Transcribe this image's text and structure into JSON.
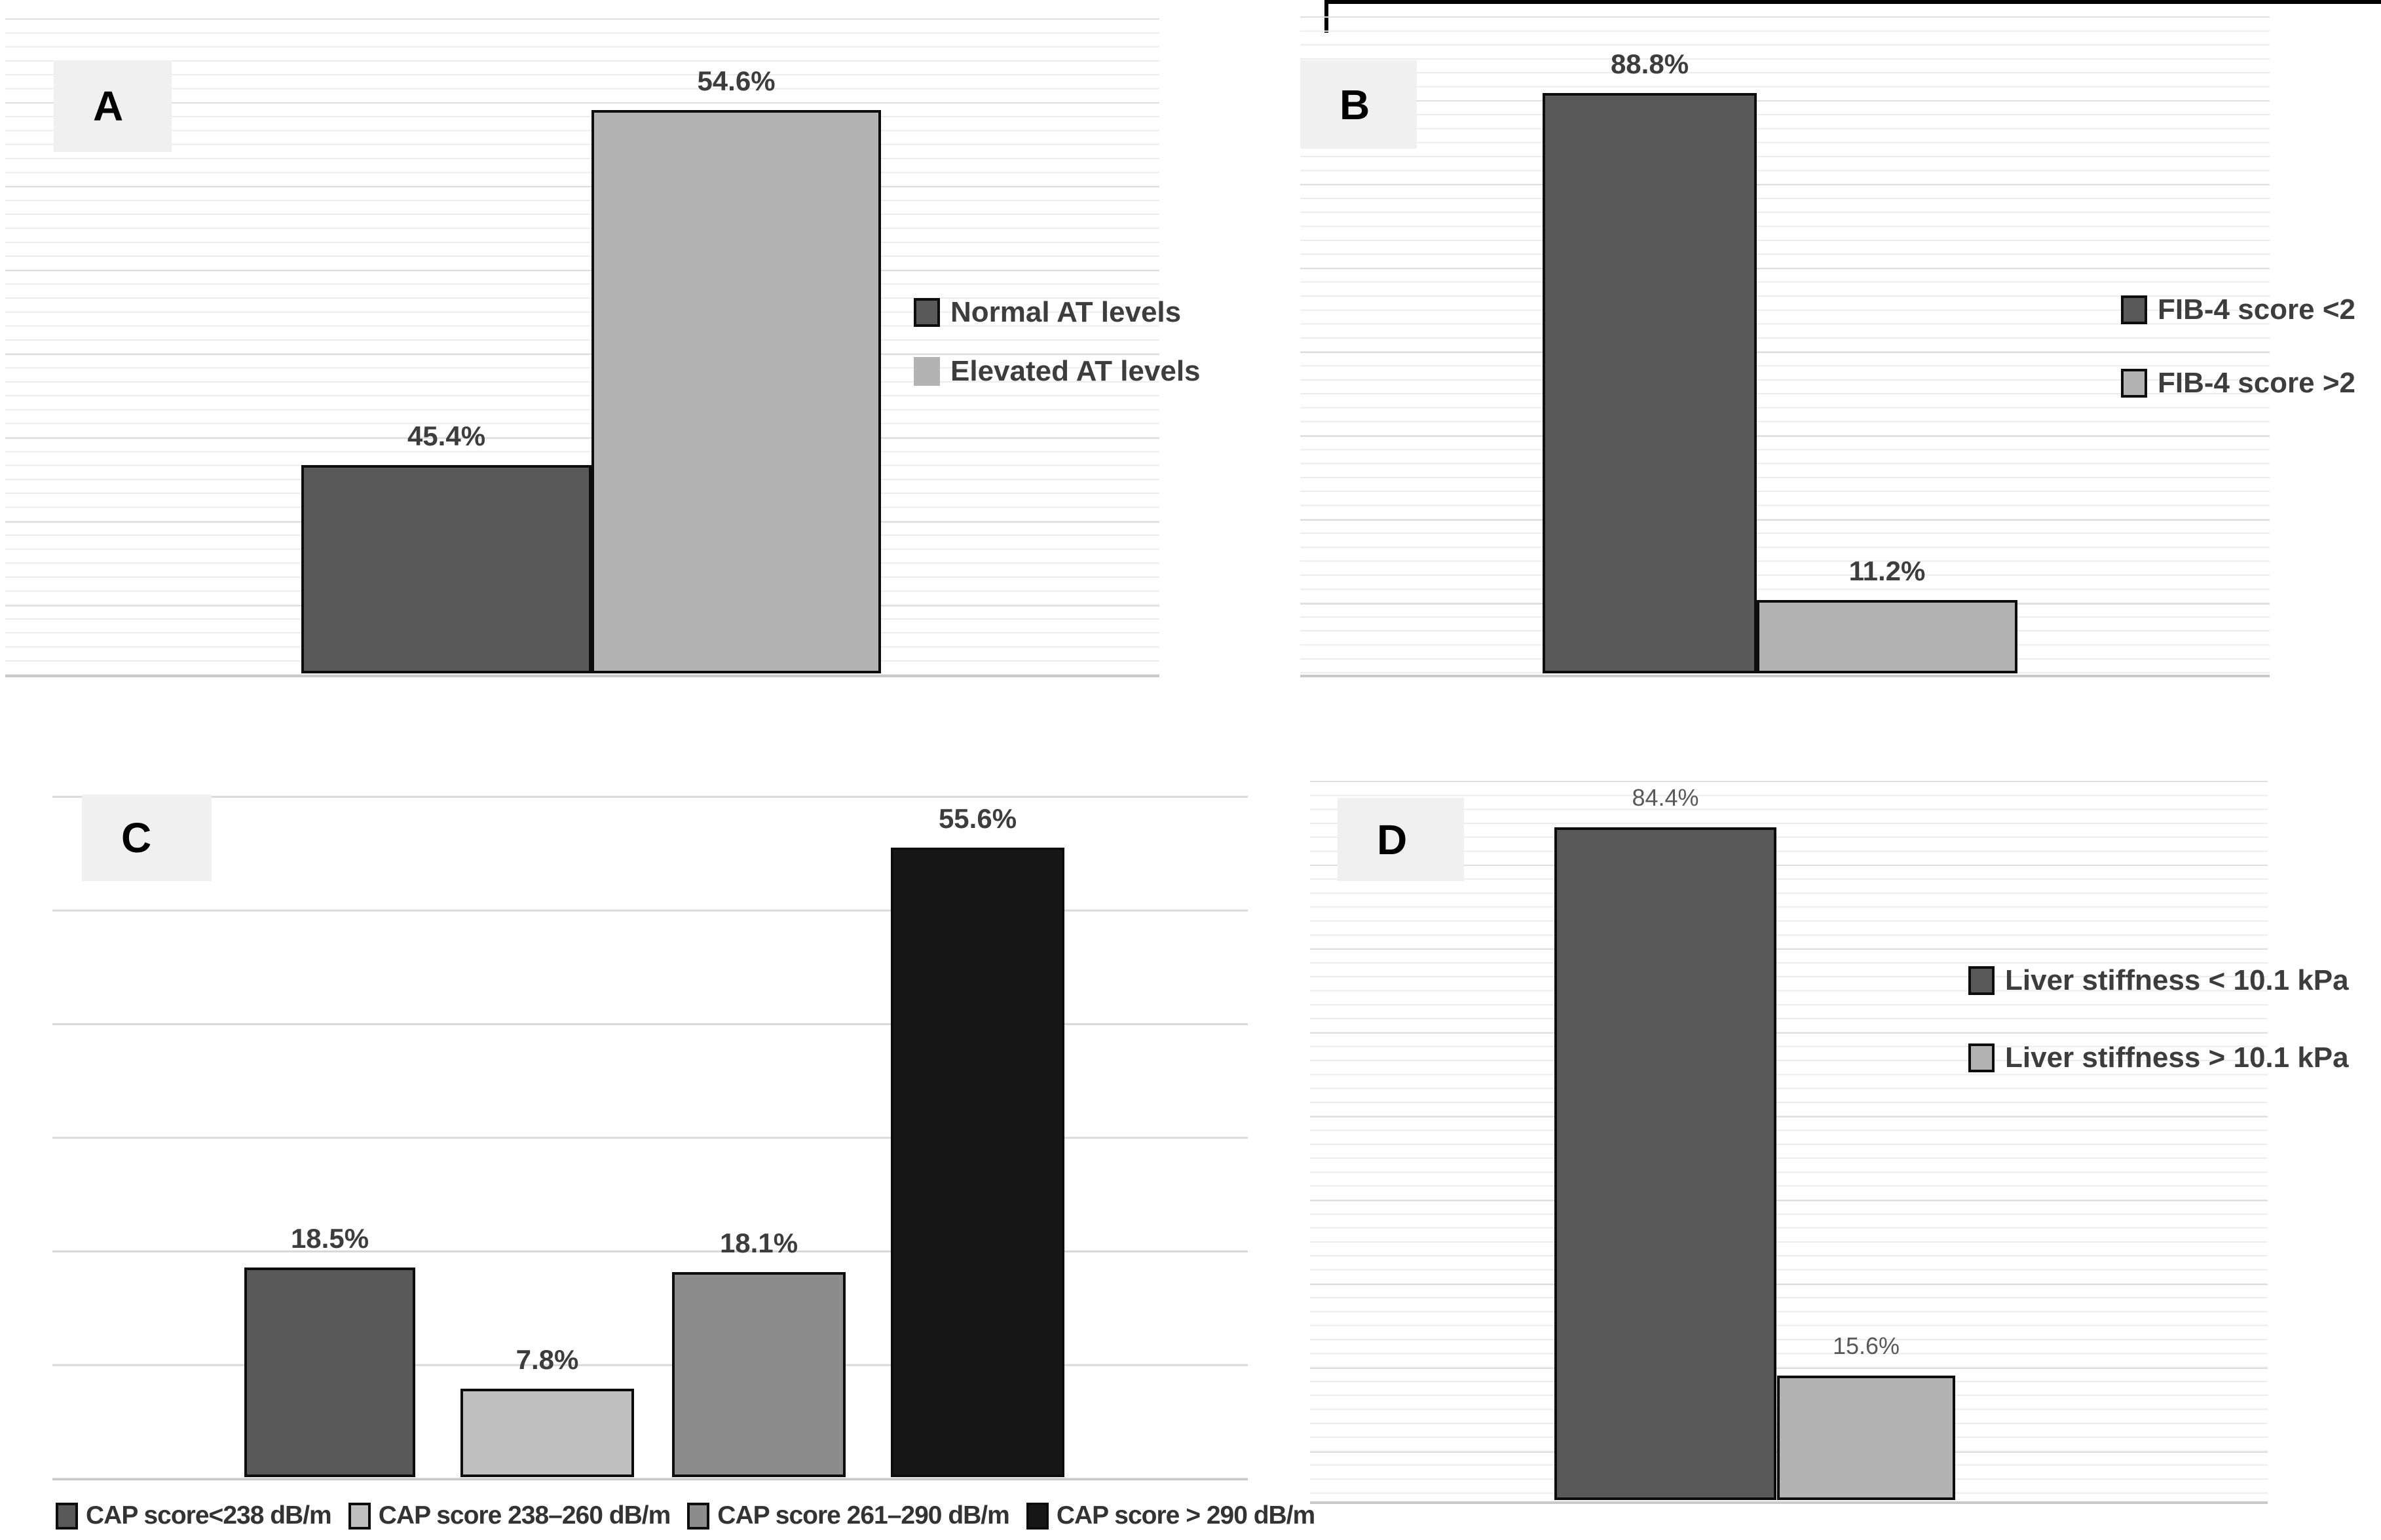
{
  "figure": {
    "background": "#ffffff"
  },
  "chart_data": [
    {
      "panel": "A",
      "type": "bar",
      "value_suffix": "%",
      "ylim": [
        40,
        56
      ],
      "grid": "fine-horizontal",
      "legend_position": "right",
      "series": [
        {
          "label": "Normal AT levels",
          "value": 45.4,
          "color": "#595959"
        },
        {
          "label": "Elevated AT levels",
          "value": 54.6,
          "color": "#b3b3b3"
        }
      ]
    },
    {
      "panel": "B",
      "type": "bar",
      "value_suffix": "%",
      "ylim": [
        0,
        100
      ],
      "grid": "fine-horizontal",
      "legend_position": "right",
      "series": [
        {
          "label": "FIB-4 score <2",
          "value": 88.8,
          "color": "#595959"
        },
        {
          "label": "FIB-4 score >2",
          "value": 11.2,
          "color": "#b3b3b3"
        }
      ]
    },
    {
      "panel": "C",
      "type": "bar",
      "value_suffix": "%",
      "ylim": [
        0,
        60
      ],
      "grid": "sparse-horizontal",
      "legend_position": "bottom",
      "series": [
        {
          "label": "CAP score<238 dB/m",
          "value": 18.5,
          "color": "#595959"
        },
        {
          "label": "CAP score 238–260  dB/m",
          "value": 7.8,
          "color": "#bfbfbf"
        },
        {
          "label": "CAP score 261–290  dB/m",
          "value": 18.1,
          "color": "#8c8c8c"
        },
        {
          "label": "CAP score > 290 dB/m",
          "value": 55.6,
          "color": "#171717"
        }
      ]
    },
    {
      "panel": "D",
      "type": "bar",
      "value_suffix": "%",
      "ylim": [
        0,
        90
      ],
      "grid": "fine-horizontal",
      "legend_position": "right",
      "series": [
        {
          "label": "Liver stiffness < 10.1 kPa",
          "value": 84.4,
          "color": "#595959"
        },
        {
          "label": "Liver stiffness > 10.1 kPa",
          "value": 15.6,
          "color": "#b3b3b3"
        }
      ]
    }
  ]
}
